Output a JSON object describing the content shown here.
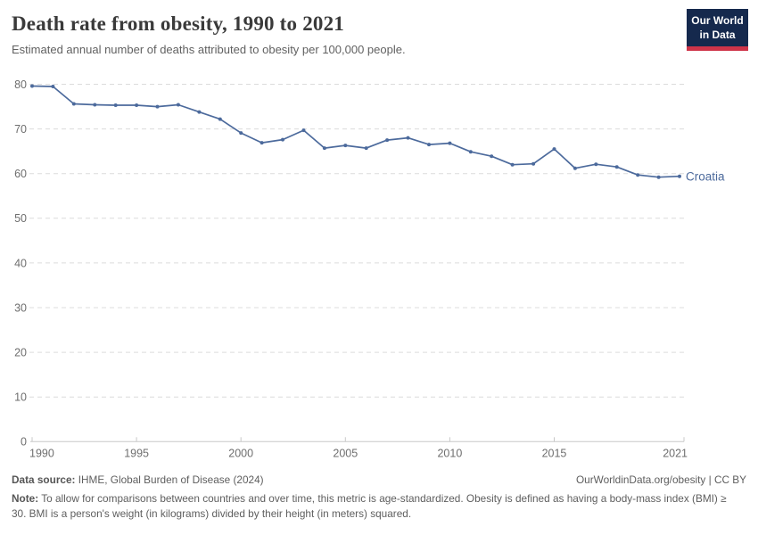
{
  "header": {
    "title": "Death rate from obesity, 1990 to 2021",
    "subtitle": "Estimated annual number of deaths attributed to obesity per 100,000 people.",
    "logo": {
      "line1": "Our World",
      "line2": "in Data",
      "bg_color": "#15294d",
      "accent_color": "#ce3449"
    }
  },
  "chart_data": {
    "type": "line",
    "title": "Death rate from obesity, 1990 to 2021",
    "xlabel": "",
    "ylabel": "",
    "xlim": [
      1990,
      2021
    ],
    "ylim": [
      0,
      80
    ],
    "x_ticks": [
      1990,
      1995,
      2000,
      2005,
      2010,
      2015,
      2021
    ],
    "y_ticks": [
      0,
      10,
      20,
      30,
      40,
      50,
      60,
      70,
      80
    ],
    "grid": "horizontal-dashed",
    "legend_position": "end-of-line-label",
    "line_color": "#4c6a9c",
    "grid_color": "#dcdcdc",
    "axis_color": "#c8c8c8",
    "tick_label_color": "#6e6e6e",
    "series": [
      {
        "name": "Croatia",
        "color": "#4c6a9c",
        "x": [
          1990,
          1991,
          1992,
          1993,
          1994,
          1995,
          1996,
          1997,
          1998,
          1999,
          2000,
          2001,
          2002,
          2003,
          2004,
          2005,
          2006,
          2007,
          2008,
          2009,
          2010,
          2011,
          2012,
          2013,
          2014,
          2015,
          2016,
          2017,
          2018,
          2019,
          2020,
          2021
        ],
        "values": [
          79.6,
          79.5,
          75.6,
          75.4,
          75.3,
          75.3,
          75.0,
          75.4,
          73.8,
          72.2,
          69.1,
          66.9,
          67.6,
          69.7,
          65.7,
          66.3,
          65.7,
          67.5,
          68.0,
          66.5,
          66.8,
          64.9,
          63.9,
          62.0,
          62.2,
          65.5,
          61.2,
          62.1,
          61.5,
          59.7,
          59.2,
          59.4
        ]
      }
    ]
  },
  "footer": {
    "datasource_label": "Data source:",
    "datasource_text": " IHME, Global Burden of Disease (2024)",
    "link": "OurWorldinData.org/obesity | CC BY",
    "note_label": "Note:",
    "note_text": " To allow for comparisons between countries and over time, this metric is age-standardized. Obesity is defined as having a body-mass index (BMI) ≥ 30. BMI is a person's weight (in kilograms) divided by their height (in meters) squared."
  }
}
